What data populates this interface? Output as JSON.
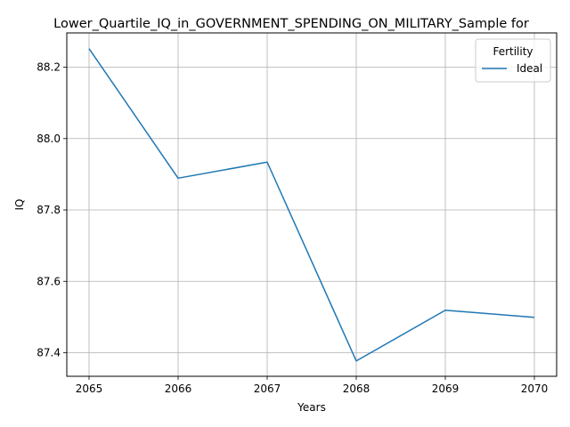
{
  "chart_data": {
    "type": "line",
    "title": "Lower_Quartile_IQ_in_GOVERNMENT_SPENDING_ON_MILITARY_Sample for",
    "xlabel": "Years",
    "ylabel": "IQ",
    "x": [
      2065,
      2066,
      2067,
      2068,
      2069,
      2070
    ],
    "x_tick_labels": [
      "2065",
      "2066",
      "2067",
      "2068",
      "2069",
      "2070"
    ],
    "y_ticks": [
      87.4,
      87.6,
      87.8,
      88.0,
      88.2
    ],
    "y_tick_labels": [
      "87.4",
      "87.6",
      "87.8",
      "88.0",
      "88.2"
    ],
    "xlim": [
      2064.75,
      2070.25
    ],
    "ylim": [
      87.334,
      88.296
    ],
    "grid": true,
    "legend": {
      "title": "Fertility",
      "placement": "top-right"
    },
    "series": [
      {
        "name": "Ideal",
        "color": "#1f77b4",
        "values": [
          88.252,
          87.889,
          87.934,
          87.377,
          87.519,
          87.499
        ]
      }
    ]
  }
}
